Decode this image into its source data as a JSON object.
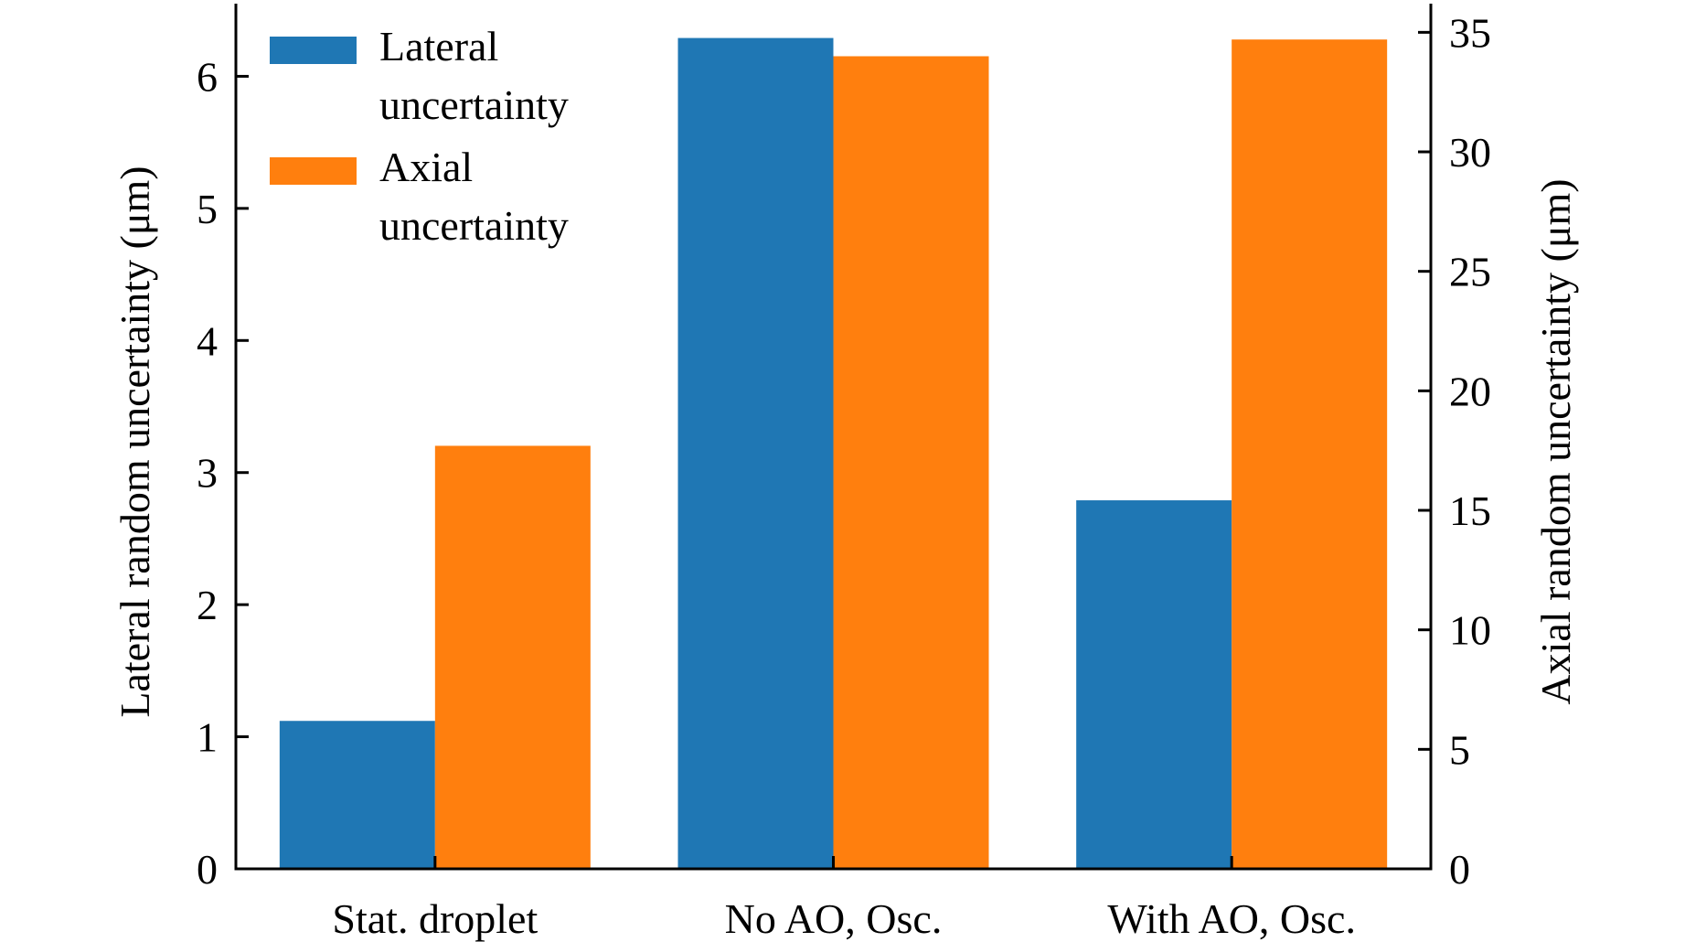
{
  "chart_data": {
    "type": "bar",
    "categories": [
      "Stat. droplet",
      "No AO, Osc.",
      "With AO, Osc."
    ],
    "series": [
      {
        "name": "Lateral uncertainty",
        "legend_lines": [
          "Lateral",
          "uncertainty"
        ],
        "axis": "left",
        "color": "#1f77b4",
        "values": [
          1.12,
          6.29,
          2.79
        ]
      },
      {
        "name": "Axial uncertainty",
        "legend_lines": [
          "Axial",
          "uncertainty"
        ],
        "axis": "right",
        "color": "#ff7f0e",
        "values": [
          17.7,
          34.0,
          34.7
        ]
      }
    ],
    "ylabel": "Lateral random uncertainty (μm)",
    "y2label": "Axial random uncertainty (μm)",
    "ylim": [
      0,
      6.55
    ],
    "y2lim": [
      0,
      36.2
    ],
    "yticks": [
      "0",
      "1",
      "2",
      "3",
      "4",
      "5",
      "6"
    ],
    "y2ticks": [
      "0",
      "5",
      "10",
      "15",
      "20",
      "25",
      "30",
      "35"
    ],
    "grid": false,
    "legend_position": "top-left"
  }
}
